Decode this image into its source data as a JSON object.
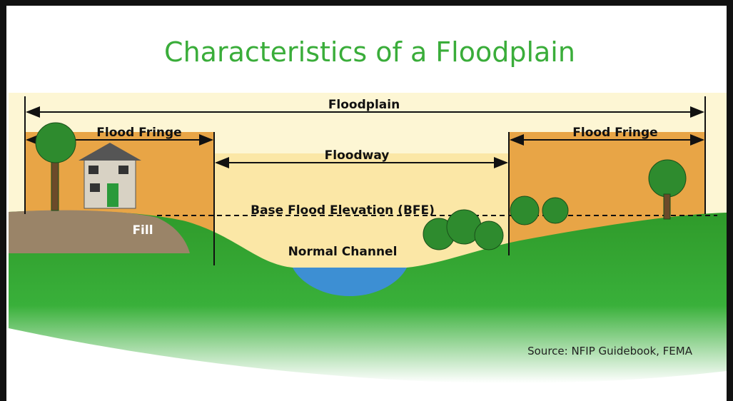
{
  "title": "Characteristics of a Floodplain",
  "diagram": {
    "floodplain": "Floodplain",
    "flood_fringe_left": "Flood Fringe",
    "flood_fringe_right": "Flood Fringe",
    "floodway": "Floodway",
    "bfe": "Base Flood Elevation (BFE)",
    "normal_channel": "Normal Channel",
    "fill": "Fill"
  },
  "source": "Source: NFIP Guidebook, FEMA"
}
